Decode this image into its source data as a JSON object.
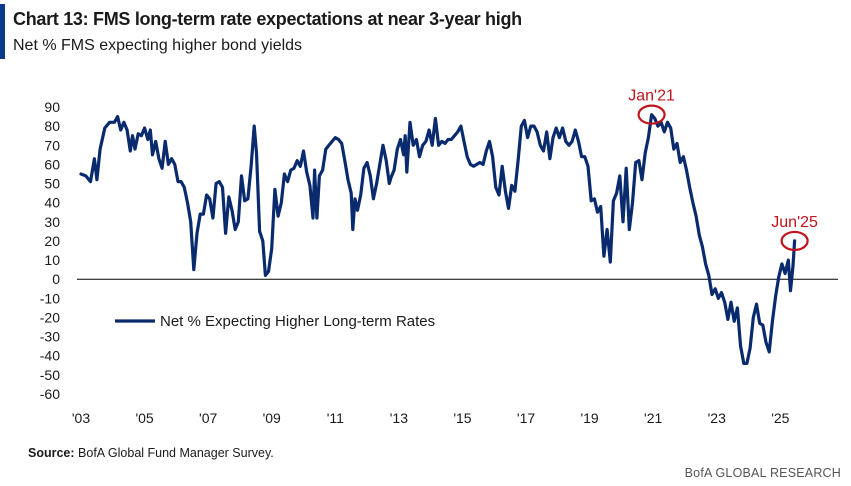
{
  "header": {
    "title": "Chart 13: FMS long-term rate expectations at near 3-year high",
    "subtitle": "Net % FMS expecting higher bond yields"
  },
  "footer": {
    "source_label": "Source:",
    "source_text": "BofA Global Fund Manager Survey.",
    "brand": "BofA GLOBAL RESEARCH"
  },
  "colors": {
    "line": "#0a2a6e",
    "annotation": "#c0141c",
    "accent": "#0a3a8c"
  },
  "chart_data": {
    "type": "line",
    "title": "Chart 13: FMS long-term rate expectations at near 3-year high",
    "subtitle": "Net % FMS expecting higher bond yields",
    "xlim": [
      2003,
      2026.5
    ],
    "ylim": [
      -60,
      90
    ],
    "x_ticks": [
      {
        "value": 2003,
        "label": "'03"
      },
      {
        "value": 2005,
        "label": "'05"
      },
      {
        "value": 2007,
        "label": "'07"
      },
      {
        "value": 2009,
        "label": "'09"
      },
      {
        "value": 2011,
        "label": "'11"
      },
      {
        "value": 2013,
        "label": "'13"
      },
      {
        "value": 2015,
        "label": "'15"
      },
      {
        "value": 2017,
        "label": "'17"
      },
      {
        "value": 2019,
        "label": "'19"
      },
      {
        "value": 2021,
        "label": "'21"
      },
      {
        "value": 2023,
        "label": "'23"
      },
      {
        "value": 2025,
        "label": "'25"
      }
    ],
    "y_ticks": [
      90,
      80,
      70,
      60,
      50,
      40,
      30,
      20,
      10,
      0,
      -10,
      -20,
      -30,
      -40,
      -50,
      -60
    ],
    "zero_line": true,
    "grid": false,
    "legend": {
      "position": "left-bottom",
      "entries": [
        "Net % Expecting Higher Long-term Rates"
      ]
    },
    "annotations": [
      {
        "label": "Jan'21",
        "x": 2020.95,
        "y": 86
      },
      {
        "label": "Jun'25",
        "x": 2025.45,
        "y": 20
      }
    ],
    "series": [
      {
        "name": "Net % Expecting Higher Long-term Rates",
        "points": [
          [
            2003.0,
            55
          ],
          [
            2003.15,
            54
          ],
          [
            2003.3,
            51
          ],
          [
            2003.42,
            63
          ],
          [
            2003.5,
            52
          ],
          [
            2003.6,
            68
          ],
          [
            2003.75,
            79
          ],
          [
            2003.9,
            82
          ],
          [
            2004.05,
            82
          ],
          [
            2004.15,
            85
          ],
          [
            2004.25,
            78
          ],
          [
            2004.35,
            82
          ],
          [
            2004.45,
            78
          ],
          [
            2004.55,
            67
          ],
          [
            2004.62,
            75
          ],
          [
            2004.7,
            68
          ],
          [
            2004.8,
            76
          ],
          [
            2004.9,
            75
          ],
          [
            2005.0,
            79
          ],
          [
            2005.1,
            73
          ],
          [
            2005.18,
            78
          ],
          [
            2005.25,
            65
          ],
          [
            2005.35,
            72
          ],
          [
            2005.45,
            63
          ],
          [
            2005.55,
            58
          ],
          [
            2005.65,
            72
          ],
          [
            2005.75,
            60
          ],
          [
            2005.85,
            63
          ],
          [
            2005.95,
            60
          ],
          [
            2006.05,
            51
          ],
          [
            2006.15,
            51
          ],
          [
            2006.25,
            48
          ],
          [
            2006.35,
            40
          ],
          [
            2006.45,
            30
          ],
          [
            2006.55,
            5
          ],
          [
            2006.65,
            24
          ],
          [
            2006.75,
            34
          ],
          [
            2006.85,
            34
          ],
          [
            2006.95,
            44
          ],
          [
            2007.05,
            42
          ],
          [
            2007.15,
            32
          ],
          [
            2007.25,
            50
          ],
          [
            2007.35,
            51
          ],
          [
            2007.45,
            48
          ],
          [
            2007.55,
            24
          ],
          [
            2007.65,
            43
          ],
          [
            2007.75,
            36
          ],
          [
            2007.85,
            26
          ],
          [
            2007.95,
            30
          ],
          [
            2008.05,
            54
          ],
          [
            2008.15,
            41
          ],
          [
            2008.25,
            42
          ],
          [
            2008.35,
            59
          ],
          [
            2008.45,
            80
          ],
          [
            2008.52,
            66
          ],
          [
            2008.62,
            25
          ],
          [
            2008.72,
            20
          ],
          [
            2008.8,
            2
          ],
          [
            2008.9,
            4
          ],
          [
            2009.0,
            16
          ],
          [
            2009.1,
            47
          ],
          [
            2009.2,
            33
          ],
          [
            2009.3,
            40
          ],
          [
            2009.4,
            55
          ],
          [
            2009.5,
            51
          ],
          [
            2009.6,
            57
          ],
          [
            2009.7,
            58
          ],
          [
            2009.8,
            62
          ],
          [
            2009.9,
            59
          ],
          [
            2010.0,
            67
          ],
          [
            2010.1,
            56
          ],
          [
            2010.2,
            49
          ],
          [
            2010.3,
            32
          ],
          [
            2010.35,
            57
          ],
          [
            2010.42,
            32
          ],
          [
            2010.5,
            54
          ],
          [
            2010.6,
            57
          ],
          [
            2010.7,
            68
          ],
          [
            2010.8,
            70
          ],
          [
            2010.9,
            72
          ],
          [
            2011.0,
            74
          ],
          [
            2011.1,
            73
          ],
          [
            2011.2,
            71
          ],
          [
            2011.3,
            62
          ],
          [
            2011.4,
            52
          ],
          [
            2011.5,
            45
          ],
          [
            2011.55,
            26
          ],
          [
            2011.62,
            42
          ],
          [
            2011.7,
            36
          ],
          [
            2011.8,
            44
          ],
          [
            2011.9,
            58
          ],
          [
            2012.0,
            61
          ],
          [
            2012.1,
            54
          ],
          [
            2012.2,
            42
          ],
          [
            2012.3,
            50
          ],
          [
            2012.4,
            60
          ],
          [
            2012.5,
            70
          ],
          [
            2012.6,
            62
          ],
          [
            2012.7,
            50
          ],
          [
            2012.75,
            53
          ],
          [
            2012.85,
            57
          ],
          [
            2012.95,
            68
          ],
          [
            2013.05,
            73
          ],
          [
            2013.15,
            65
          ],
          [
            2013.2,
            75
          ],
          [
            2013.25,
            56
          ],
          [
            2013.35,
            82
          ],
          [
            2013.45,
            70
          ],
          [
            2013.55,
            73
          ],
          [
            2013.65,
            64
          ],
          [
            2013.75,
            70
          ],
          [
            2013.85,
            72
          ],
          [
            2013.95,
            78
          ],
          [
            2014.05,
            70
          ],
          [
            2014.15,
            84
          ],
          [
            2014.25,
            70
          ],
          [
            2014.35,
            72
          ],
          [
            2014.45,
            71
          ],
          [
            2014.55,
            73
          ],
          [
            2014.65,
            73
          ],
          [
            2014.75,
            75
          ],
          [
            2014.85,
            77
          ],
          [
            2014.95,
            80
          ],
          [
            2015.05,
            72
          ],
          [
            2015.15,
            64
          ],
          [
            2015.25,
            60
          ],
          [
            2015.35,
            59
          ],
          [
            2015.45,
            60
          ],
          [
            2015.55,
            61
          ],
          [
            2015.65,
            60
          ],
          [
            2015.75,
            67
          ],
          [
            2015.85,
            72
          ],
          [
            2015.95,
            64
          ],
          [
            2016.05,
            48
          ],
          [
            2016.15,
            44
          ],
          [
            2016.25,
            59
          ],
          [
            2016.35,
            46
          ],
          [
            2016.45,
            37
          ],
          [
            2016.55,
            49
          ],
          [
            2016.65,
            46
          ],
          [
            2016.75,
            62
          ],
          [
            2016.85,
            80
          ],
          [
            2016.95,
            83
          ],
          [
            2017.05,
            74
          ],
          [
            2017.15,
            80
          ],
          [
            2017.25,
            80
          ],
          [
            2017.35,
            77
          ],
          [
            2017.45,
            70
          ],
          [
            2017.55,
            67
          ],
          [
            2017.65,
            77
          ],
          [
            2017.75,
            63
          ],
          [
            2017.85,
            74
          ],
          [
            2017.95,
            79
          ],
          [
            2018.05,
            74
          ],
          [
            2018.15,
            79
          ],
          [
            2018.25,
            72
          ],
          [
            2018.35,
            70
          ],
          [
            2018.45,
            72
          ],
          [
            2018.55,
            78
          ],
          [
            2018.65,
            72
          ],
          [
            2018.75,
            64
          ],
          [
            2018.85,
            64
          ],
          [
            2018.95,
            59
          ],
          [
            2019.05,
            41
          ],
          [
            2019.15,
            42
          ],
          [
            2019.25,
            35
          ],
          [
            2019.35,
            38
          ],
          [
            2019.45,
            12
          ],
          [
            2019.55,
            26
          ],
          [
            2019.65,
            9
          ],
          [
            2019.75,
            41
          ],
          [
            2019.85,
            45
          ],
          [
            2019.95,
            54
          ],
          [
            2020.05,
            30
          ],
          [
            2020.15,
            58
          ],
          [
            2020.25,
            26
          ],
          [
            2020.35,
            40
          ],
          [
            2020.45,
            61
          ],
          [
            2020.55,
            62
          ],
          [
            2020.65,
            52
          ],
          [
            2020.75,
            66
          ],
          [
            2020.85,
            74
          ],
          [
            2020.95,
            86
          ],
          [
            2021.05,
            84
          ],
          [
            2021.15,
            80
          ],
          [
            2021.25,
            82
          ],
          [
            2021.35,
            77
          ],
          [
            2021.45,
            82
          ],
          [
            2021.55,
            79
          ],
          [
            2021.65,
            68
          ],
          [
            2021.75,
            71
          ],
          [
            2021.85,
            61
          ],
          [
            2021.95,
            64
          ],
          [
            2022.05,
            57
          ],
          [
            2022.15,
            48
          ],
          [
            2022.25,
            40
          ],
          [
            2022.35,
            33
          ],
          [
            2022.45,
            23
          ],
          [
            2022.55,
            17
          ],
          [
            2022.65,
            8
          ],
          [
            2022.75,
            2
          ],
          [
            2022.85,
            -8
          ],
          [
            2022.95,
            -5
          ],
          [
            2023.05,
            -10
          ],
          [
            2023.15,
            -7
          ],
          [
            2023.25,
            -12
          ],
          [
            2023.35,
            -21
          ],
          [
            2023.45,
            -12
          ],
          [
            2023.55,
            -22
          ],
          [
            2023.65,
            -15
          ],
          [
            2023.75,
            -35
          ],
          [
            2023.85,
            -44
          ],
          [
            2023.95,
            -44
          ],
          [
            2024.05,
            -36
          ],
          [
            2024.15,
            -20
          ],
          [
            2024.25,
            -13
          ],
          [
            2024.35,
            -23
          ],
          [
            2024.45,
            -24
          ],
          [
            2024.55,
            -33
          ],
          [
            2024.65,
            -38
          ],
          [
            2024.75,
            -22
          ],
          [
            2024.85,
            -9
          ],
          [
            2024.95,
            1
          ],
          [
            2025.05,
            8
          ],
          [
            2025.15,
            3
          ],
          [
            2025.25,
            10
          ],
          [
            2025.32,
            -6
          ],
          [
            2025.4,
            7
          ],
          [
            2025.45,
            20
          ]
        ]
      }
    ]
  }
}
